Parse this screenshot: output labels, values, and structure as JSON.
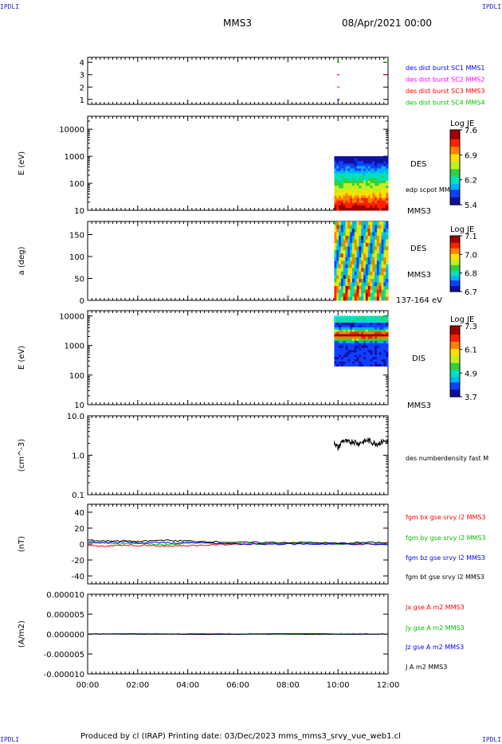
{
  "header": {
    "corner_left": "IPDLI",
    "corner_right": "IPDLI",
    "corner_bottom_left": "IPDLI",
    "corner_bottom_right": "IPDLI",
    "title": "MMS3",
    "datetime": "08/Apr/2021 00:00"
  },
  "footer": {
    "text": "Produced by cl (IRAP)   Printing date: 03/Dec/2023   mms_mms3_srvy_vue_web1.cl"
  },
  "colors": {
    "spectrogram_scale": [
      "#1010a0",
      "#1040ff",
      "#00b0ff",
      "#00e0c0",
      "#30d040",
      "#c0f020",
      "#ffe000",
      "#ff8000",
      "#ff2000",
      "#a00000"
    ],
    "mms1": "#0000ff",
    "mms2": "#ff00ff",
    "mms3": "#ff0000",
    "mms4": "#00c000"
  },
  "chart_data": [
    {
      "type": "scatter",
      "ylim": [
        0.6,
        4.4
      ],
      "y_ticks": [
        "1",
        "2",
        "3",
        "4"
      ],
      "series": [
        {
          "name": "des dist burst SC1 MMS1",
          "color": "#0000ff",
          "y": 1,
          "x": [
            10.0
          ]
        },
        {
          "name": "des dist burst SC2 MMS2",
          "color": "#ff00ff",
          "y": 2,
          "x": [
            10.0
          ]
        },
        {
          "name": "des dist burst SC3 MMS3",
          "color": "#ff0000",
          "y": 3,
          "x": [
            10.0,
            11.9
          ]
        },
        {
          "name": "des dist burst SC4 MMS4",
          "color": "#00c000",
          "y": 4,
          "x": [
            10.0,
            11.95
          ]
        }
      ]
    },
    {
      "type": "heatmap",
      "ylabel": "E (eV)",
      "yscale": "log",
      "ylim": [
        10,
        30000
      ],
      "y_ticks": [
        "10",
        "100",
        "1000",
        "10000"
      ],
      "data_range": {
        "x": [
          9.85,
          12.0
        ],
        "y": [
          10,
          1000
        ]
      },
      "labels": [
        "DES",
        "edp scpot MMS3",
        "MMS3"
      ],
      "colorbar": {
        "title": "Log JE",
        "ticks": [
          "7.6",
          "6.9",
          "6.2",
          "5.4"
        ]
      }
    },
    {
      "type": "heatmap",
      "ylabel": "a (deg)",
      "ylim": [
        0,
        180
      ],
      "y_ticks": [
        "0",
        "50",
        "100",
        "150"
      ],
      "data_range": {
        "x": [
          9.85,
          12.0
        ],
        "y": [
          0,
          180
        ]
      },
      "labels": [
        "DES",
        "MMS3",
        "137-164 eV"
      ],
      "colorbar": {
        "title": "Log JE",
        "ticks": [
          "7.1",
          "7.0",
          "6.8",
          "6.7"
        ]
      }
    },
    {
      "type": "heatmap",
      "ylabel": "E (eV)",
      "yscale": "log",
      "ylim": [
        10,
        15000
      ],
      "y_ticks": [
        "10",
        "100",
        "1000",
        "10000"
      ],
      "data_range": {
        "x": [
          9.85,
          12.0
        ],
        "y": [
          200,
          10000
        ]
      },
      "labels": [
        "DIS",
        "MMS3"
      ],
      "colorbar": {
        "title": "Log JE",
        "ticks": [
          "7.3",
          "6.1",
          "4.9",
          "3.7"
        ]
      }
    },
    {
      "type": "line",
      "ylabel": "(cm^-3)",
      "yscale": "log",
      "ylim": [
        0.1,
        10.0
      ],
      "y_ticks": [
        "0.1",
        "1.0",
        "10.0"
      ],
      "series": [
        {
          "name": "des numberdensity fast M",
          "color": "#000000",
          "x": [
            9.85,
            10.0,
            10.2,
            10.4,
            10.6,
            10.8,
            11.0,
            11.2,
            11.4,
            11.6,
            11.8,
            12.0
          ],
          "y": [
            2.2,
            1.5,
            2.4,
            2.1,
            2.3,
            2.0,
            2.2,
            2.4,
            2.1,
            2.0,
            2.3,
            2.2
          ]
        }
      ]
    },
    {
      "type": "line",
      "ylabel": "(nT)",
      "ylim": [
        -50,
        50
      ],
      "y_ticks": [
        "-40",
        "-20",
        "0",
        "20",
        "40"
      ],
      "series": [
        {
          "name": "fgm bx gse srvy l2 MMS3",
          "color": "#ff0000",
          "x": [
            0,
            0.5,
            1,
            1.5,
            2,
            2.5,
            3,
            3.5,
            4,
            5,
            6,
            7,
            8,
            9,
            10,
            11,
            12
          ],
          "y": [
            -2,
            -3,
            -2,
            -1,
            -2,
            -1,
            -3,
            -2,
            -2,
            -1,
            0,
            0,
            1,
            1,
            0,
            0,
            0
          ]
        },
        {
          "name": "fgm by gse srvy l2 MMS3",
          "color": "#00c000",
          "x": [
            0,
            0.5,
            1,
            1.5,
            2,
            2.5,
            3,
            3.5,
            4,
            5,
            6,
            7,
            8,
            9,
            10,
            11,
            12
          ],
          "y": [
            2,
            2,
            1,
            0,
            1,
            0,
            -1,
            0,
            1,
            1,
            1,
            0,
            1,
            1,
            0,
            1,
            0
          ]
        },
        {
          "name": "fgm bz gse srvy l2 MMS3",
          "color": "#0000ff",
          "x": [
            0,
            0.5,
            1,
            1.5,
            2,
            2.5,
            3,
            3.5,
            4,
            5,
            6,
            7,
            8,
            9,
            10,
            11,
            12
          ],
          "y": [
            3,
            1,
            2,
            3,
            1,
            2,
            2,
            1,
            2,
            1,
            0,
            0,
            0,
            0,
            0,
            0,
            -1
          ]
        },
        {
          "name": "fgm bt gse srvy l2 MMS3",
          "color": "#000000",
          "x": [
            0,
            0.5,
            1,
            1.5,
            2,
            2.5,
            3,
            3.5,
            4,
            5,
            6,
            7,
            8,
            9,
            10,
            11,
            12
          ],
          "y": [
            5,
            4,
            4,
            4,
            3,
            4,
            5,
            4,
            4,
            3,
            2,
            2,
            2,
            2,
            1,
            2,
            2
          ]
        }
      ]
    },
    {
      "type": "line",
      "ylabel": "(A/m2)",
      "ylim": [
        -1e-05,
        1e-05
      ],
      "y_ticks": [
        "-0.000010",
        "-0.000005",
        "0.000000",
        "0.000005",
        "0.000010"
      ],
      "x_ticks": [
        "00:00",
        "02:00",
        "04:00",
        "06:00",
        "08:00",
        "10:00",
        "12:00"
      ],
      "series": [
        {
          "name": "Jx gse A m2 MMS3",
          "color": "#ff0000",
          "x": [
            0,
            12
          ],
          "y": [
            0,
            0
          ]
        },
        {
          "name": "Jy gse A m2 MMS3",
          "color": "#00c000",
          "x": [
            0,
            12
          ],
          "y": [
            0,
            0
          ]
        },
        {
          "name": "Jz gse A m2 MMS3",
          "color": "#0000ff",
          "x": [
            0,
            12
          ],
          "y": [
            0,
            0
          ]
        },
        {
          "name": "J A m2 MMS3",
          "color": "#000000",
          "x": [
            0,
            1,
            2,
            3,
            4,
            5,
            6,
            7,
            8,
            9,
            10,
            11,
            12
          ],
          "y": [
            0,
            0,
            0,
            0,
            0,
            0,
            0,
            0,
            0,
            0,
            0,
            0,
            0
          ]
        }
      ]
    }
  ]
}
